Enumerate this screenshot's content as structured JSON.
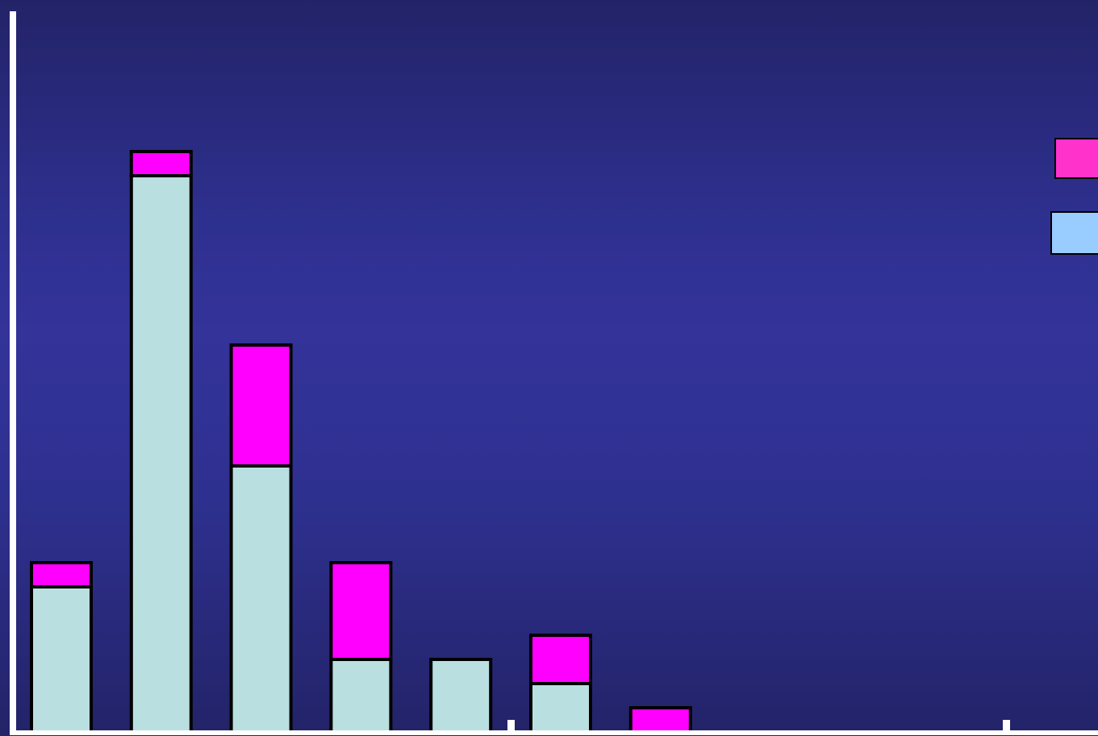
{
  "chart_data": {
    "type": "bar",
    "stacked": true,
    "categories": [
      "",
      "",
      "",
      "",
      "",
      "",
      ""
    ],
    "series": [
      {
        "values": [
          6,
          23,
          11,
          3,
          3,
          2,
          0
        ],
        "color": "#b9dfe1",
        "legend_color": "#99ccff"
      },
      {
        "values": [
          1,
          1,
          5,
          4,
          0,
          2,
          1
        ],
        "color": "#ff00ff",
        "legend_color": "#ff33cc"
      }
    ],
    "legend": {
      "placement": "right",
      "labels": []
    },
    "title": "",
    "xlabel": "",
    "ylabel": "",
    "ylim": [
      0,
      30
    ],
    "grid": false,
    "axis_color": "#ffffff",
    "background": [
      "#232368",
      "#33339a"
    ]
  }
}
